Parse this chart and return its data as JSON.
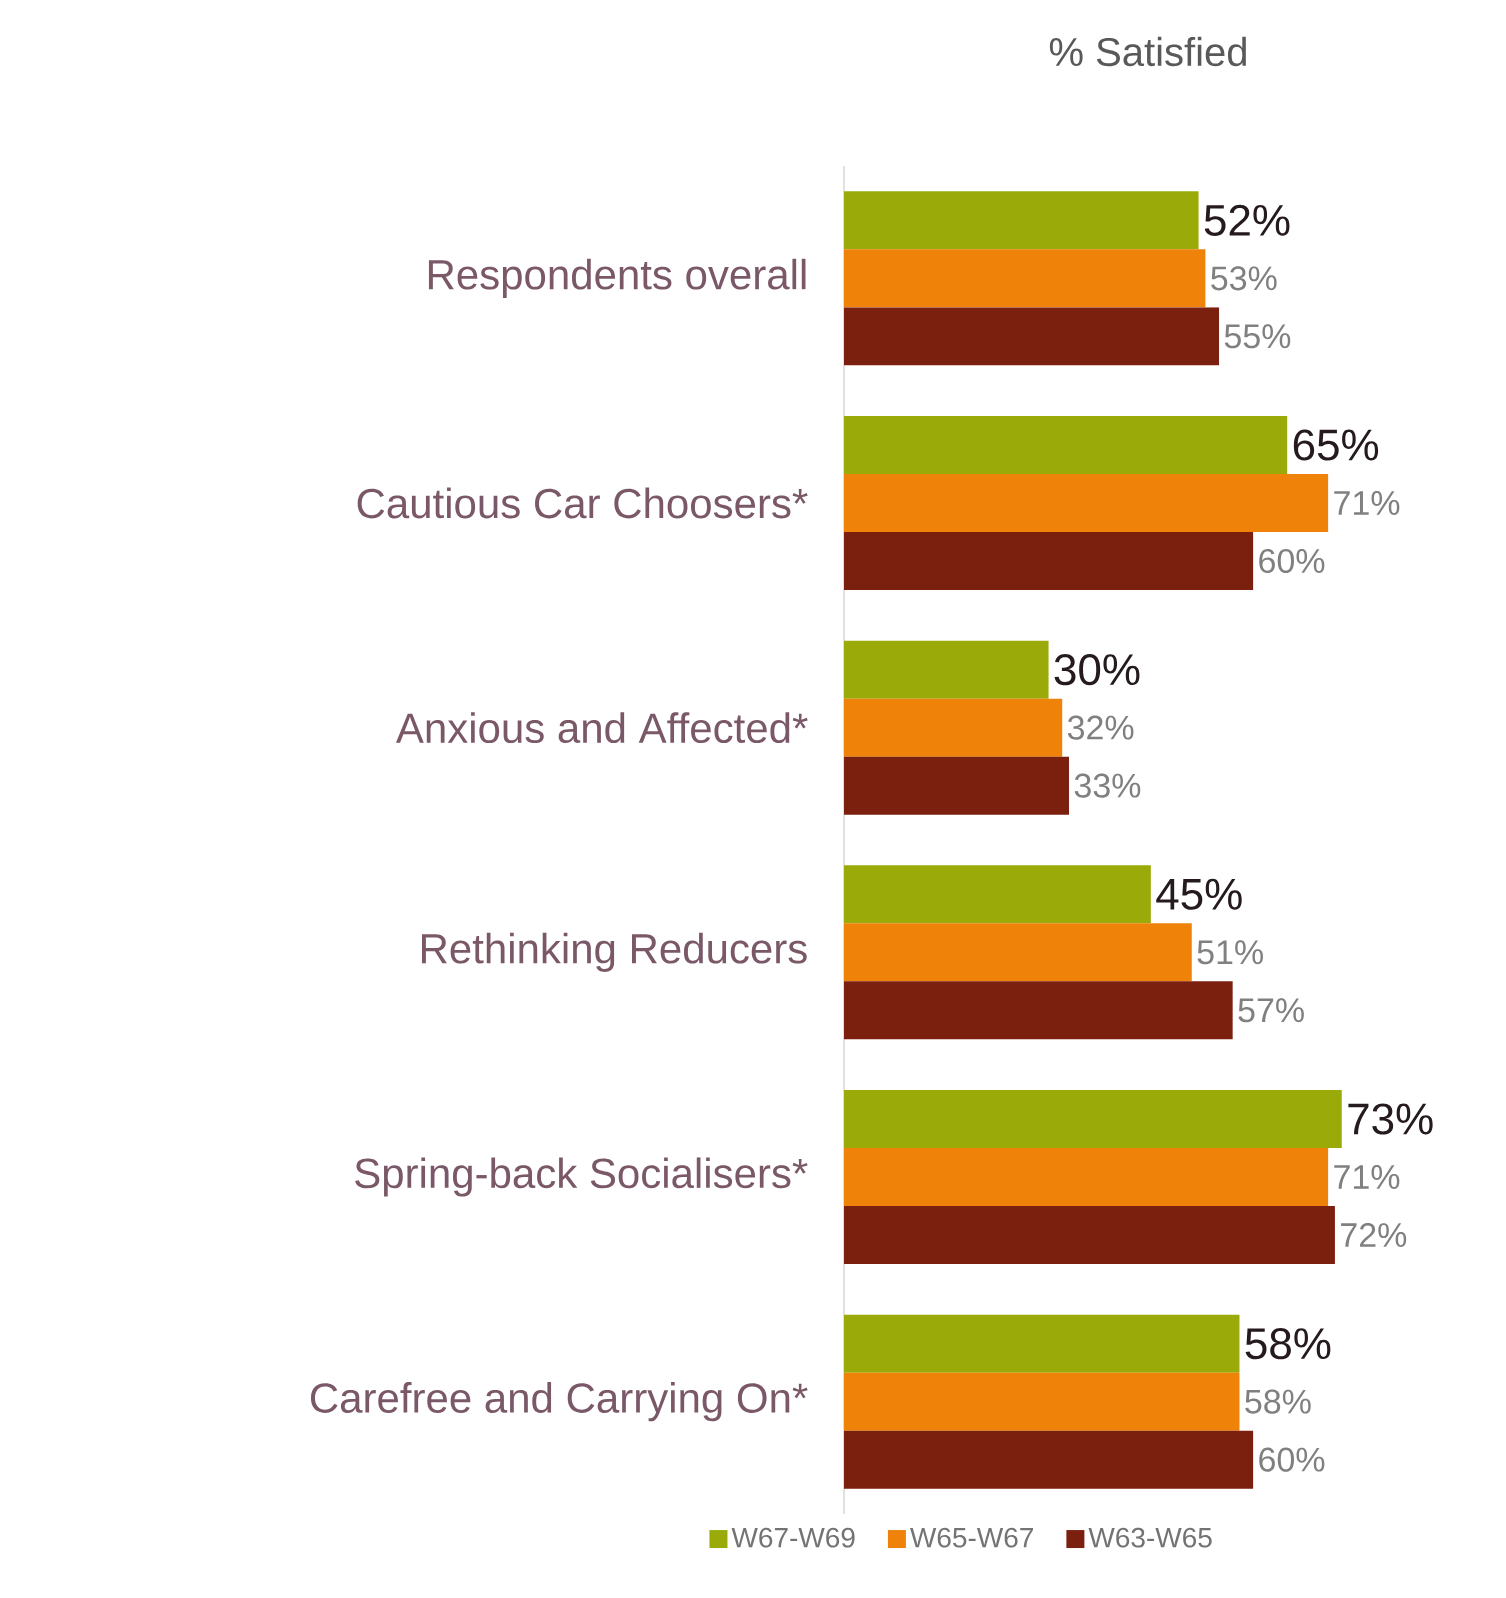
{
  "chart_data": {
    "type": "bar",
    "orientation": "horizontal",
    "title": "% Satisfied",
    "categories": [
      "Respondents overall",
      "Cautious Car Choosers*",
      "Anxious and Affected*",
      "Rethinking Reducers",
      "Spring-back Socialisers*",
      "Carefree and Carrying On*"
    ],
    "series": [
      {
        "name": "W67-W69",
        "color": "#9aab09",
        "values": [
          52,
          65,
          30,
          45,
          73,
          58
        ],
        "value_labels": [
          "52%",
          "65%",
          "30%",
          "45%",
          "73%",
          "58%"
        ]
      },
      {
        "name": "W65-W67",
        "color": "#ef8209",
        "values": [
          53,
          71,
          32,
          51,
          71,
          58
        ],
        "value_labels": [
          "53%",
          "71%",
          "32%",
          "51%",
          "71%",
          "58%"
        ]
      },
      {
        "name": "W63-W65",
        "color": "#7b1f0e",
        "values": [
          55,
          60,
          33,
          57,
          72,
          60
        ],
        "value_labels": [
          "55%",
          "60%",
          "33%",
          "57%",
          "72%",
          "60%"
        ]
      }
    ],
    "legend": "bottom",
    "tick_labels": "y"
  }
}
